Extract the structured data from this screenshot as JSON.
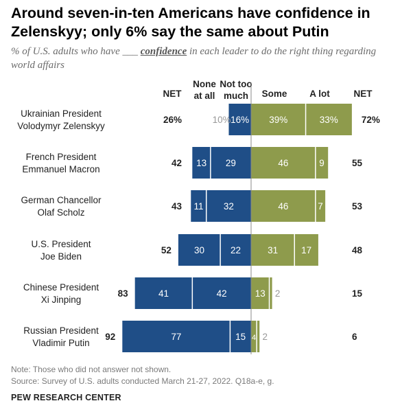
{
  "title": "Around seven-in-ten Americans have confidence in Zelenskyy; only 6% say the same about Putin",
  "subtitle": {
    "before": "% of U.S. adults who have ___ ",
    "emph": "confidence",
    "after": " in each leader to do the right thing regarding world affairs"
  },
  "note": "Note: Those who did not answer not shown.",
  "source": "Source: Survey of U.S. adults conducted March 21-27, 2022. Q18a-e, g.",
  "brand": "PEW RESEARCH CENTER",
  "chart_data": {
    "type": "bar",
    "subtype": "diverging-stacked-horizontal",
    "headers": {
      "net_left": "NET",
      "none_at_all": "None at all",
      "not_too_much": "Not too much",
      "some": "Some",
      "a_lot": "A lot",
      "net_right": "NET"
    },
    "categories": [
      [
        "Ukrainian President",
        "Volodymyr Zelenskyy"
      ],
      [
        "French President",
        "Emmanuel Macron"
      ],
      [
        "German Chancellor",
        "Olaf Scholz"
      ],
      [
        "U.S. President",
        "Joe Biden"
      ],
      [
        "Chinese President",
        "Xi Jinping"
      ],
      [
        "Russian President",
        "Vladimir Putin"
      ]
    ],
    "series": [
      {
        "name": "None at all",
        "values": [
          10,
          13,
          11,
          30,
          41,
          77
        ],
        "color": "#1f4e87"
      },
      {
        "name": "Not too much",
        "values": [
          16,
          29,
          32,
          22,
          42,
          15
        ],
        "color": "#1f4e87"
      },
      {
        "name": "Some",
        "values": [
          39,
          46,
          46,
          31,
          13,
          4
        ],
        "color": "#8e9b4c"
      },
      {
        "name": "A lot",
        "values": [
          33,
          9,
          7,
          17,
          2,
          2
        ],
        "color": "#8e9b4c"
      }
    ],
    "net_no_confidence": [
      26,
      42,
      43,
      52,
      83,
      92
    ],
    "net_confidence": [
      72,
      55,
      53,
      48,
      15,
      6
    ],
    "labels": {
      "none_at_all": [
        "10%",
        "13",
        "11",
        "30",
        "41",
        "77"
      ],
      "not_too_much": [
        "16%",
        "29",
        "32",
        "22",
        "42",
        "15"
      ],
      "some": [
        "39%",
        "46",
        "46",
        "31",
        "13",
        "4"
      ],
      "a_lot": [
        "33%",
        "9",
        "7",
        "17",
        "2",
        "2"
      ],
      "net_left": [
        "26%",
        "42",
        "43",
        "52",
        "83",
        "92"
      ],
      "net_right": [
        "72%",
        "55",
        "53",
        "48",
        "15",
        "6"
      ]
    },
    "unit": "%",
    "xlim": [
      -100,
      100
    ]
  }
}
